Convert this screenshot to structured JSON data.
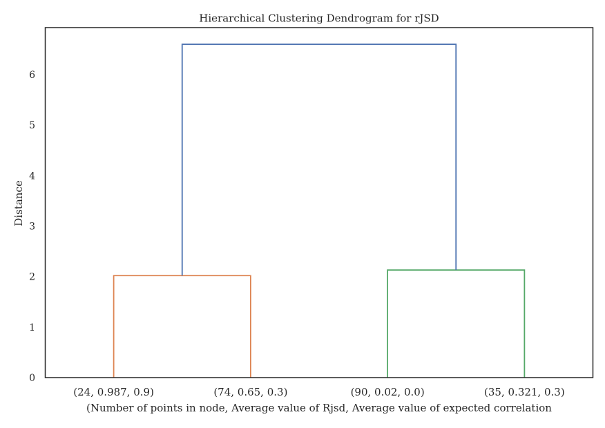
{
  "chart_data": {
    "type": "dendrogram",
    "title": "Hierarchical Clustering Dendrogram for rJSD",
    "xlabel": "(Number of points in node, Average value of Rjsd, Average value of expected correlation",
    "ylabel": "Distance",
    "ylim": [
      0,
      6.93
    ],
    "yticks": [
      0,
      1,
      2,
      3,
      4,
      5,
      6
    ],
    "grid": false,
    "leaves": [
      "(24, 0.987, 0.9)",
      "(74, 0.65, 0.3)",
      "(90, 0.02, 0.0)",
      "(35, 0.321, 0.3)"
    ],
    "merges": [
      {
        "name": "cluster-a",
        "children": [
          "leaf:0",
          "leaf:1"
        ],
        "height": 2.02,
        "color": "#dd8452"
      },
      {
        "name": "cluster-b",
        "children": [
          "leaf:2",
          "leaf:3"
        ],
        "height": 2.13,
        "color": "#55a868"
      },
      {
        "name": "root",
        "children": [
          "node:0",
          "node:1"
        ],
        "height": 6.6,
        "color": "#4c72b0"
      }
    ]
  }
}
